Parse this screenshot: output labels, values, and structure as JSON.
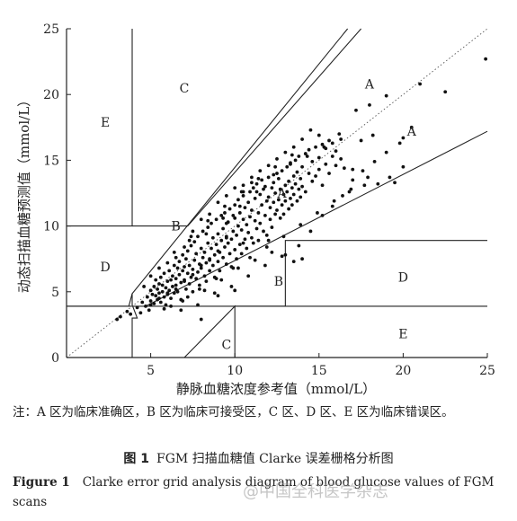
{
  "chart_data": {
    "type": "scatter",
    "title": "",
    "xlabel": "静脉血糖浓度参考值（mmol/L）",
    "ylabel": "动态扫描血糖预测值（mmol/L）",
    "xlim": [
      0,
      25
    ],
    "ylim": [
      0,
      25
    ],
    "x_ticks": [
      0,
      5,
      10,
      15,
      20,
      25
    ],
    "y_ticks": [
      0,
      5,
      10,
      15,
      20,
      25
    ],
    "x_tick_labels": [
      "",
      "5",
      "10",
      "15",
      "20",
      "25"
    ],
    "y_tick_labels": [
      "0",
      "5",
      "10",
      "15",
      "20",
      "25"
    ],
    "zone_labels": [
      {
        "text": "A",
        "x": 18.0,
        "y": 20.8
      },
      {
        "text": "A",
        "x": 20.5,
        "y": 17.2
      },
      {
        "text": "A",
        "x": 12.8,
        "y": 12.5
      },
      {
        "text": "B",
        "x": 6.5,
        "y": 10.0
      },
      {
        "text": "B",
        "x": 12.6,
        "y": 5.8
      },
      {
        "text": "C",
        "x": 7.0,
        "y": 20.5
      },
      {
        "text": "C",
        "x": 9.5,
        "y": 1.0
      },
      {
        "text": "D",
        "x": 2.3,
        "y": 6.9
      },
      {
        "text": "D",
        "x": 20.0,
        "y": 6.1
      },
      {
        "text": "E",
        "x": 2.3,
        "y": 17.9
      },
      {
        "text": "E",
        "x": 20.0,
        "y": 1.8
      }
    ],
    "points": [
      [
        3.0,
        2.9
      ],
      [
        3.2,
        3.1
      ],
      [
        3.6,
        3.5
      ],
      [
        3.8,
        3.3
      ],
      [
        4.2,
        3.8
      ],
      [
        4.4,
        3.4
      ],
      [
        4.5,
        4.2
      ],
      [
        4.7,
        3.9
      ],
      [
        4.8,
        4.6
      ],
      [
        4.9,
        3.6
      ],
      [
        5.0,
        4.3
      ],
      [
        5.0,
        5.1
      ],
      [
        5.1,
        4.8
      ],
      [
        5.2,
        4.1
      ],
      [
        5.2,
        5.4
      ],
      [
        5.3,
        4.7
      ],
      [
        5.3,
        5.9
      ],
      [
        5.4,
        4.4
      ],
      [
        5.4,
        5.2
      ],
      [
        5.5,
        4.9
      ],
      [
        5.5,
        5.6
      ],
      [
        5.6,
        4.2
      ],
      [
        5.6,
        6.1
      ],
      [
        5.7,
        5.0
      ],
      [
        5.7,
        5.5
      ],
      [
        5.8,
        4.6
      ],
      [
        5.8,
        6.4
      ],
      [
        5.9,
        5.3
      ],
      [
        5.9,
        4.0
      ],
      [
        6.0,
        5.8
      ],
      [
        6.0,
        4.8
      ],
      [
        6.1,
        6.6
      ],
      [
        6.1,
        5.1
      ],
      [
        6.2,
        4.5
      ],
      [
        6.2,
        5.9
      ],
      [
        6.3,
        6.2
      ],
      [
        6.3,
        5.4
      ],
      [
        6.4,
        7.0
      ],
      [
        6.4,
        4.9
      ],
      [
        6.5,
        6.0
      ],
      [
        6.5,
        5.5
      ],
      [
        6.6,
        6.8
      ],
      [
        6.6,
        5.0
      ],
      [
        6.7,
        7.3
      ],
      [
        6.7,
        6.3
      ],
      [
        6.8,
        5.7
      ],
      [
        6.8,
        4.4
      ],
      [
        6.9,
        6.6
      ],
      [
        6.9,
        7.8
      ],
      [
        7.0,
        5.9
      ],
      [
        7.0,
        6.9
      ],
      [
        7.1,
        5.2
      ],
      [
        7.1,
        7.5
      ],
      [
        7.2,
        6.4
      ],
      [
        7.2,
        8.1
      ],
      [
        7.3,
        5.6
      ],
      [
        7.3,
        7.0
      ],
      [
        7.4,
        6.1
      ],
      [
        7.4,
        8.5
      ],
      [
        7.5,
        6.7
      ],
      [
        7.5,
        5.0
      ],
      [
        7.6,
        7.4
      ],
      [
        7.6,
        8.8
      ],
      [
        7.7,
        6.0
      ],
      [
        7.7,
        7.9
      ],
      [
        7.8,
        6.5
      ],
      [
        7.8,
        9.2
      ],
      [
        7.9,
        7.1
      ],
      [
        7.9,
        5.5
      ],
      [
        8.0,
        8.3
      ],
      [
        8.0,
        6.8
      ],
      [
        8.1,
        7.6
      ],
      [
        8.1,
        9.6
      ],
      [
        8.2,
        6.2
      ],
      [
        8.2,
        8.0
      ],
      [
        8.3,
        7.2
      ],
      [
        8.3,
        5.8
      ],
      [
        8.4,
        8.7
      ],
      [
        8.4,
        9.9
      ],
      [
        8.5,
        7.5
      ],
      [
        8.5,
        6.6
      ],
      [
        8.6,
        8.3
      ],
      [
        8.6,
        10.2
      ],
      [
        8.7,
        7.0
      ],
      [
        8.7,
        9.1
      ],
      [
        8.8,
        7.8
      ],
      [
        8.8,
        6.1
      ],
      [
        8.9,
        8.6
      ],
      [
        8.9,
        10.5
      ],
      [
        9.0,
        7.3
      ],
      [
        9.0,
        9.4
      ],
      [
        9.1,
        8.0
      ],
      [
        9.1,
        6.6
      ],
      [
        9.2,
        8.9
      ],
      [
        9.2,
        10.8
      ],
      [
        9.3,
        7.6
      ],
      [
        9.3,
        9.8
      ],
      [
        9.4,
        8.4
      ],
      [
        9.4,
        11.0
      ],
      [
        9.5,
        7.1
      ],
      [
        9.5,
        9.2
      ],
      [
        9.6,
        8.7
      ],
      [
        9.6,
        10.3
      ],
      [
        9.7,
        7.9
      ],
      [
        9.7,
        11.3
      ],
      [
        9.8,
        9.0
      ],
      [
        9.8,
        6.9
      ],
      [
        9.9,
        9.6
      ],
      [
        9.9,
        10.8
      ],
      [
        10.0,
        8.2
      ],
      [
        10.0,
        11.6
      ],
      [
        10.1,
        9.3
      ],
      [
        10.1,
        7.5
      ],
      [
        10.2,
        10.0
      ],
      [
        10.2,
        12.0
      ],
      [
        10.3,
        8.6
      ],
      [
        10.3,
        11.0
      ],
      [
        10.4,
        9.7
      ],
      [
        10.4,
        7.9
      ],
      [
        10.5,
        10.5
      ],
      [
        10.5,
        12.3
      ],
      [
        10.6,
        9.0
      ],
      [
        10.6,
        11.4
      ],
      [
        10.7,
        10.1
      ],
      [
        10.7,
        8.3
      ],
      [
        10.8,
        11.8
      ],
      [
        10.8,
        9.5
      ],
      [
        10.9,
        12.6
      ],
      [
        10.9,
        10.7
      ],
      [
        11.0,
        9.1
      ],
      [
        11.0,
        11.2
      ],
      [
        11.1,
        12.9
      ],
      [
        11.1,
        8.7
      ],
      [
        11.2,
        10.4
      ],
      [
        11.2,
        12.1
      ],
      [
        11.3,
        9.8
      ],
      [
        11.3,
        13.2
      ],
      [
        11.4,
        11.0
      ],
      [
        11.4,
        8.9
      ],
      [
        11.5,
        12.4
      ],
      [
        11.5,
        10.2
      ],
      [
        11.6,
        13.5
      ],
      [
        11.6,
        11.6
      ],
      [
        11.7,
        9.6
      ],
      [
        11.7,
        12.8
      ],
      [
        11.8,
        10.8
      ],
      [
        11.8,
        13.0
      ],
      [
        11.9,
        11.9
      ],
      [
        11.9,
        9.3
      ],
      [
        12.0,
        12.2
      ],
      [
        12.0,
        13.7
      ],
      [
        12.1,
        10.5
      ],
      [
        12.1,
        11.4
      ],
      [
        12.2,
        12.9
      ],
      [
        12.2,
        9.9
      ],
      [
        12.3,
        11.8
      ],
      [
        12.3,
        13.3
      ],
      [
        12.4,
        10.9
      ],
      [
        12.4,
        12.5
      ],
      [
        12.5,
        14.0
      ],
      [
        12.5,
        11.2
      ],
      [
        12.6,
        12.0
      ],
      [
        12.6,
        13.6
      ],
      [
        12.7,
        10.6
      ],
      [
        12.7,
        12.8
      ],
      [
        12.8,
        11.6
      ],
      [
        12.8,
        14.2
      ],
      [
        12.9,
        12.4
      ],
      [
        12.9,
        10.9
      ],
      [
        13.0,
        13.1
      ],
      [
        13.0,
        11.9
      ],
      [
        13.1,
        14.5
      ],
      [
        13.1,
        12.6
      ],
      [
        13.2,
        11.3
      ],
      [
        13.2,
        13.4
      ],
      [
        13.3,
        12.1
      ],
      [
        13.3,
        14.8
      ],
      [
        13.4,
        12.9
      ],
      [
        13.4,
        11.6
      ],
      [
        13.5,
        13.8
      ],
      [
        13.5,
        12.4
      ],
      [
        13.6,
        15.0
      ],
      [
        13.6,
        13.2
      ],
      [
        13.7,
        11.9
      ],
      [
        13.7,
        14.1
      ],
      [
        13.8,
        12.8
      ],
      [
        13.8,
        15.3
      ],
      [
        13.9,
        13.6
      ],
      [
        13.9,
        12.2
      ],
      [
        14.0,
        14.5
      ],
      [
        14.0,
        13.0
      ],
      [
        14.2,
        15.5
      ],
      [
        14.2,
        12.6
      ],
      [
        14.4,
        14.0
      ],
      [
        14.4,
        15.8
      ],
      [
        14.6,
        13.4
      ],
      [
        14.6,
        14.9
      ],
      [
        14.8,
        16.0
      ],
      [
        14.8,
        13.8
      ],
      [
        15.0,
        15.2
      ],
      [
        15.0,
        14.3
      ],
      [
        15.2,
        16.2
      ],
      [
        15.2,
        13.1
      ],
      [
        15.4,
        14.7
      ],
      [
        15.4,
        15.9
      ],
      [
        15.6,
        16.5
      ],
      [
        15.6,
        14.0
      ],
      [
        15.8,
        15.3
      ],
      [
        15.8,
        16.3
      ],
      [
        16.0,
        15.7
      ],
      [
        16.0,
        14.6
      ],
      [
        16.3,
        15.1
      ],
      [
        16.5,
        14.4
      ],
      [
        16.8,
        12.6
      ],
      [
        17.0,
        14.3
      ],
      [
        17.2,
        18.8
      ],
      [
        17.5,
        16.5
      ],
      [
        17.7,
        13.1
      ],
      [
        18.0,
        19.2
      ],
      [
        18.2,
        16.9
      ],
      [
        18.5,
        13.2
      ],
      [
        19.0,
        19.9
      ],
      [
        19.2,
        13.7
      ],
      [
        19.5,
        13.3
      ],
      [
        20.0,
        14.5
      ],
      [
        20.0,
        16.7
      ],
      [
        20.5,
        17.5
      ],
      [
        21.0,
        20.8
      ],
      [
        22.5,
        20.2
      ],
      [
        24.9,
        22.7
      ],
      [
        13.0,
        7.8
      ],
      [
        13.5,
        7.3
      ],
      [
        14.0,
        7.5
      ],
      [
        8.0,
        2.9
      ],
      [
        9.0,
        4.7
      ],
      [
        10.0,
        5.1
      ],
      [
        9.5,
        10.2
      ],
      [
        10.5,
        8.7
      ],
      [
        11.0,
        13.7
      ],
      [
        12.0,
        8.9
      ],
      [
        6.0,
        7.2
      ],
      [
        6.5,
        7.6
      ],
      [
        7.0,
        8.4
      ],
      [
        7.5,
        9.6
      ],
      [
        8.0,
        10.5
      ],
      [
        8.5,
        10.9
      ],
      [
        9.0,
        11.8
      ],
      [
        9.5,
        12.3
      ],
      [
        10.0,
        12.9
      ],
      [
        10.5,
        13.1
      ],
      [
        5.0,
        6.2
      ],
      [
        5.5,
        6.8
      ],
      [
        6.2,
        3.9
      ],
      [
        7.2,
        4.6
      ],
      [
        8.2,
        5.1
      ],
      [
        9.2,
        5.9
      ],
      [
        10.2,
        6.8
      ],
      [
        11.2,
        7.4
      ],
      [
        12.2,
        8.0
      ],
      [
        4.6,
        5.4
      ],
      [
        5.8,
        3.7
      ],
      [
        6.8,
        3.6
      ],
      [
        7.8,
        4.0
      ],
      [
        8.8,
        4.9
      ],
      [
        9.8,
        5.4
      ],
      [
        10.8,
        6.2
      ],
      [
        11.8,
        7.0
      ],
      [
        12.8,
        7.7
      ],
      [
        13.8,
        8.5
      ],
      [
        14.5,
        9.6
      ],
      [
        15.2,
        10.8
      ],
      [
        15.8,
        11.5
      ],
      [
        16.4,
        12.3
      ],
      [
        17.0,
        13.5
      ],
      [
        17.6,
        14.2
      ],
      [
        18.3,
        14.9
      ],
      [
        19.0,
        15.6
      ],
      [
        19.8,
        16.3
      ],
      [
        16.2,
        17.0
      ],
      [
        15.0,
        16.9
      ],
      [
        14.5,
        17.3
      ],
      [
        14.0,
        16.6
      ],
      [
        13.5,
        16.0
      ],
      [
        13.0,
        15.6
      ],
      [
        12.5,
        15.1
      ],
      [
        12.0,
        14.6
      ],
      [
        11.5,
        14.2
      ],
      [
        11.0,
        13.3
      ],
      [
        10.5,
        12.6
      ],
      [
        10.0,
        10.6
      ],
      [
        9.5,
        9.1
      ],
      [
        9.0,
        8.1
      ],
      [
        8.5,
        7.4
      ],
      [
        8.0,
        7.0
      ],
      [
        7.5,
        6.3
      ],
      [
        7.0,
        5.8
      ],
      [
        6.5,
        5.2
      ],
      [
        6.0,
        4.9
      ],
      [
        5.5,
        4.5
      ],
      [
        5.0,
        4.0
      ],
      [
        7.3,
        8.9
      ],
      [
        8.3,
        9.4
      ],
      [
        9.3,
        10.6
      ],
      [
        10.3,
        11.5
      ],
      [
        11.3,
        12.6
      ],
      [
        12.3,
        13.9
      ],
      [
        13.3,
        14.7
      ],
      [
        14.3,
        15.3
      ],
      [
        15.3,
        16.0
      ],
      [
        16.3,
        16.6
      ],
      [
        6.4,
        8.0
      ],
      [
        7.4,
        9.2
      ],
      [
        8.4,
        10.4
      ],
      [
        9.4,
        11.5
      ],
      [
        10.4,
        12.6
      ],
      [
        11.4,
        13.6
      ],
      [
        12.4,
        14.5
      ],
      [
        13.4,
        15.4
      ],
      [
        6.9,
        4.3
      ],
      [
        7.9,
        5.2
      ],
      [
        8.9,
        6.0
      ],
      [
        9.9,
        6.8
      ],
      [
        10.9,
        7.6
      ],
      [
        11.9,
        8.4
      ],
      [
        12.9,
        9.2
      ],
      [
        13.9,
        10.1
      ],
      [
        14.9,
        11.0
      ],
      [
        15.9,
        11.9
      ],
      [
        16.9,
        12.8
      ],
      [
        17.9,
        13.7
      ]
    ]
  },
  "note": "注：A 区为临床准确区，B 区为临床可接受区，C 区、D 区、E 区为临床错误区。",
  "caption_zh_label": "图 1",
  "caption_zh": "FGM 扫描血糖值 Clarke 误差栅格分析图",
  "caption_en_label": "Figure 1",
  "caption_en": "Clarke error grid analysis diagram of blood glucose values of FGM scans",
  "watermark": "@中国全科医学杂志"
}
